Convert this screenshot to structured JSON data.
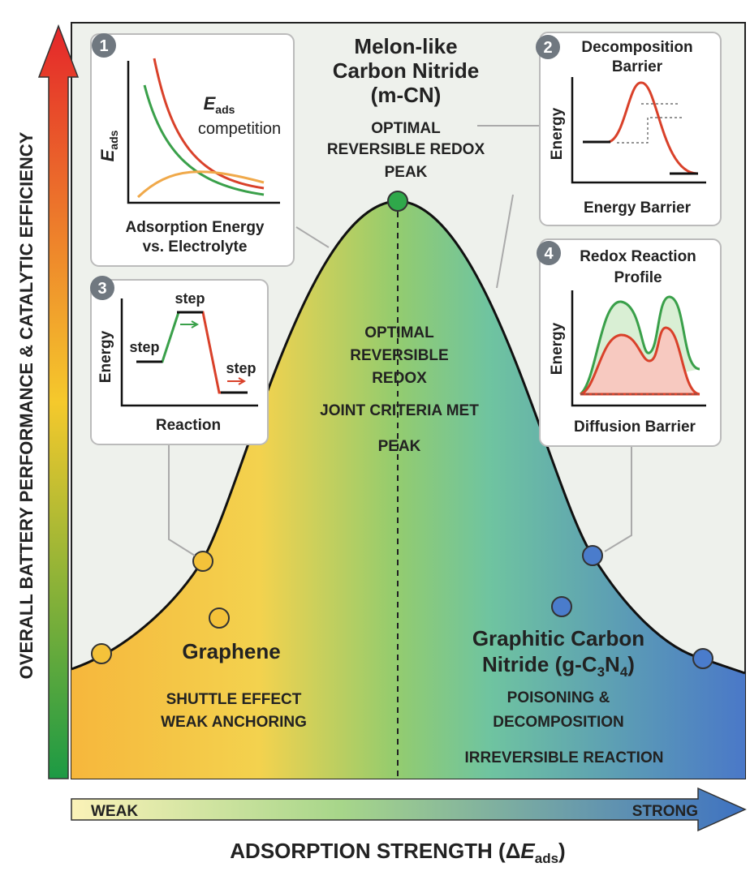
{
  "y_axis": {
    "title": "OVERALL BATTERY PERFORMANCE & CATALYTIC EFFICIENCY"
  },
  "x_axis": {
    "weak": "WEAK",
    "strong": "STRONG",
    "title": {
      "text": "ADSORPTION STRENGTH (Δ",
      "symbol": "E",
      "subscript": "ads",
      "close": ")"
    }
  },
  "peak": {
    "name": [
      "Melon-like",
      "Carbon Nitride",
      "(m-CN)"
    ],
    "caption": [
      "OPTIMAL",
      "REVERSIBLE REDOX",
      "PEAK"
    ]
  },
  "center": {
    "lines": [
      "OPTIMAL",
      "REVERSIBLE",
      "REDOX",
      "JOINT CRITERIA MET",
      "PEAK"
    ]
  },
  "left": {
    "name": "Graphene",
    "caption": [
      "SHUTTLE EFFECT",
      "WEAK ANCHORING"
    ]
  },
  "right": {
    "name_line1": "Graphitic Carbon",
    "name_line2": {
      "text": "Nitride (g-C",
      "sub1": "3",
      "mid": "N",
      "sub2": "4",
      "close": ")"
    },
    "caption": [
      "POISONING &",
      "DECOMPOSITION",
      "IRREVERSIBLE REACTION"
    ]
  },
  "insets": [
    {
      "number": "1",
      "y_label": {
        "symbol": "E",
        "subscript": "ads"
      },
      "note": {
        "symbol": "E",
        "subscript": "ads",
        "text": "competition"
      },
      "caption": [
        "Adsorption Energy",
        "vs. Electrolyte"
      ]
    },
    {
      "number": "2",
      "title": [
        "Decomposition",
        "Barrier"
      ],
      "y_label": "Energy",
      "x_label": "Energy Barrier"
    },
    {
      "number": "3",
      "steps": [
        "step",
        "step",
        "step"
      ],
      "y_label": "Energy",
      "x_label": "Reaction"
    },
    {
      "number": "4",
      "title": [
        "Redox Reaction",
        "Profile"
      ],
      "y_label": "Energy",
      "x_label": "Diffusion Barrier"
    }
  ]
}
